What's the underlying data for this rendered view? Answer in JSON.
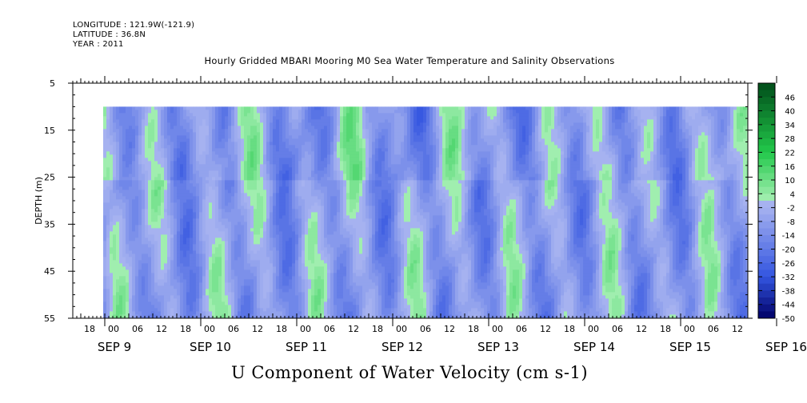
{
  "header": {
    "longitude": "LONGITUDE : 121.9W(-121.9)",
    "latitude": "LATITUDE : 36.8N",
    "year": "YEAR : 2011"
  },
  "chart_data": {
    "type": "heatmap",
    "title": "Hourly Gridded MBARI Mooring M0 Sea Water Temperature and Salinity Observations",
    "xlabel": "U Component of Water Velocity (cm s-1)",
    "ylabel": "DEPTH (m)",
    "ylim": [
      5,
      55
    ],
    "y_reversed": true,
    "y_ticks": [
      5,
      15,
      25,
      35,
      45,
      55
    ],
    "data_depth_range": [
      10,
      55
    ],
    "x_hour_labels": [
      "18",
      "00",
      "06",
      "12",
      "18",
      "00",
      "06",
      "12",
      "18",
      "00",
      "06",
      "12",
      "18",
      "00",
      "06",
      "12",
      "18",
      "00",
      "06",
      "12",
      "18",
      "00",
      "06",
      "12",
      "18",
      "00",
      "06",
      "12"
    ],
    "x_day_labels": [
      "SEP  9",
      "SEP 10",
      "SEP 11",
      "SEP 12",
      "SEP 13",
      "SEP 14",
      "SEP 15",
      "SEP 16"
    ],
    "colorbar_labels": [
      "46",
      "40",
      "34",
      "28",
      "22",
      "16",
      "10",
      "4",
      "-2",
      "-8",
      "-14",
      "-20",
      "-26",
      "-32",
      "-38",
      "-44",
      "-50"
    ],
    "colorbar_range": [
      -50,
      52
    ],
    "colorbar_step": 3,
    "colors": {
      "most_negative": "#000066",
      "negative": "#3355e0",
      "near_zero_negative": "#a6b2f0",
      "near_zero_positive": "#a6f0b4",
      "positive": "#22c84a",
      "most_positive": "#004d1a"
    }
  }
}
